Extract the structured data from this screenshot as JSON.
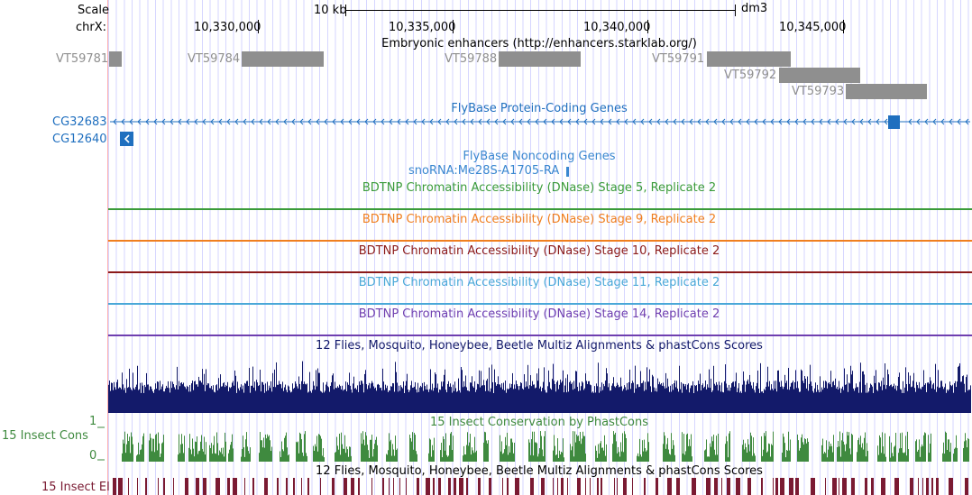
{
  "ruler": {
    "scale_label": "Scale",
    "chrom_label": "chrX:",
    "scale_bar_label": "10 kb",
    "assembly": "dm3",
    "positions": [
      "10,330,000",
      "10,335,000",
      "10,340,000",
      "10,345,000"
    ]
  },
  "tracks": {
    "enhancers": {
      "title": "Embryonic enhancers (http://enhancers.starklab.org/)",
      "items": [
        "VT59781",
        "VT59784",
        "VT59788",
        "VT59791",
        "VT59792",
        "VT59793"
      ]
    },
    "coding_genes": {
      "title": "FlyBase Protein-Coding Genes",
      "genes": [
        "CG32683",
        "CG12640"
      ],
      "color": "#1f6fbf"
    },
    "noncoding_genes": {
      "title": "FlyBase Noncoding Genes",
      "gene": "snoRNA:Me28S-A1705-RA",
      "color": "#3a87d0"
    },
    "dnase": [
      {
        "title": "BDTNP Chromatin Accessibility (DNase) Stage 5, Replicate 2",
        "color": "#3a9b3a"
      },
      {
        "title": "BDTNP Chromatin Accessibility (DNase) Stage 9, Replicate 2",
        "color": "#f07f1f"
      },
      {
        "title": "BDTNP Chromatin Accessibility (DNase) Stage 10, Replicate 2",
        "color": "#8b1a1a"
      },
      {
        "title": "BDTNP Chromatin Accessibility (DNase) Stage 11, Replicate 2",
        "color": "#4aa8d8"
      },
      {
        "title": "BDTNP Chromatin Accessibility (DNase) Stage 14, Replicate 2",
        "color": "#6f3fb0"
      }
    ],
    "multiz": {
      "title": "12 Flies, Mosquito, Honeybee, Beetle Multiz Alignments & phastCons Scores",
      "color": "#131a6a"
    },
    "insect_cons": {
      "title": "15 Insect Conservation by PhastCons",
      "side_label": "15 Insect Cons",
      "axis_max": "1",
      "axis_min": "0",
      "color": "#3f8a3f"
    },
    "insect_el": {
      "title": "12 Flies, Mosquito, Honeybee, Beetle Multiz Alignments & phastCons Scores",
      "side_label": "15 Insect El",
      "color": "#7a1a32"
    }
  }
}
